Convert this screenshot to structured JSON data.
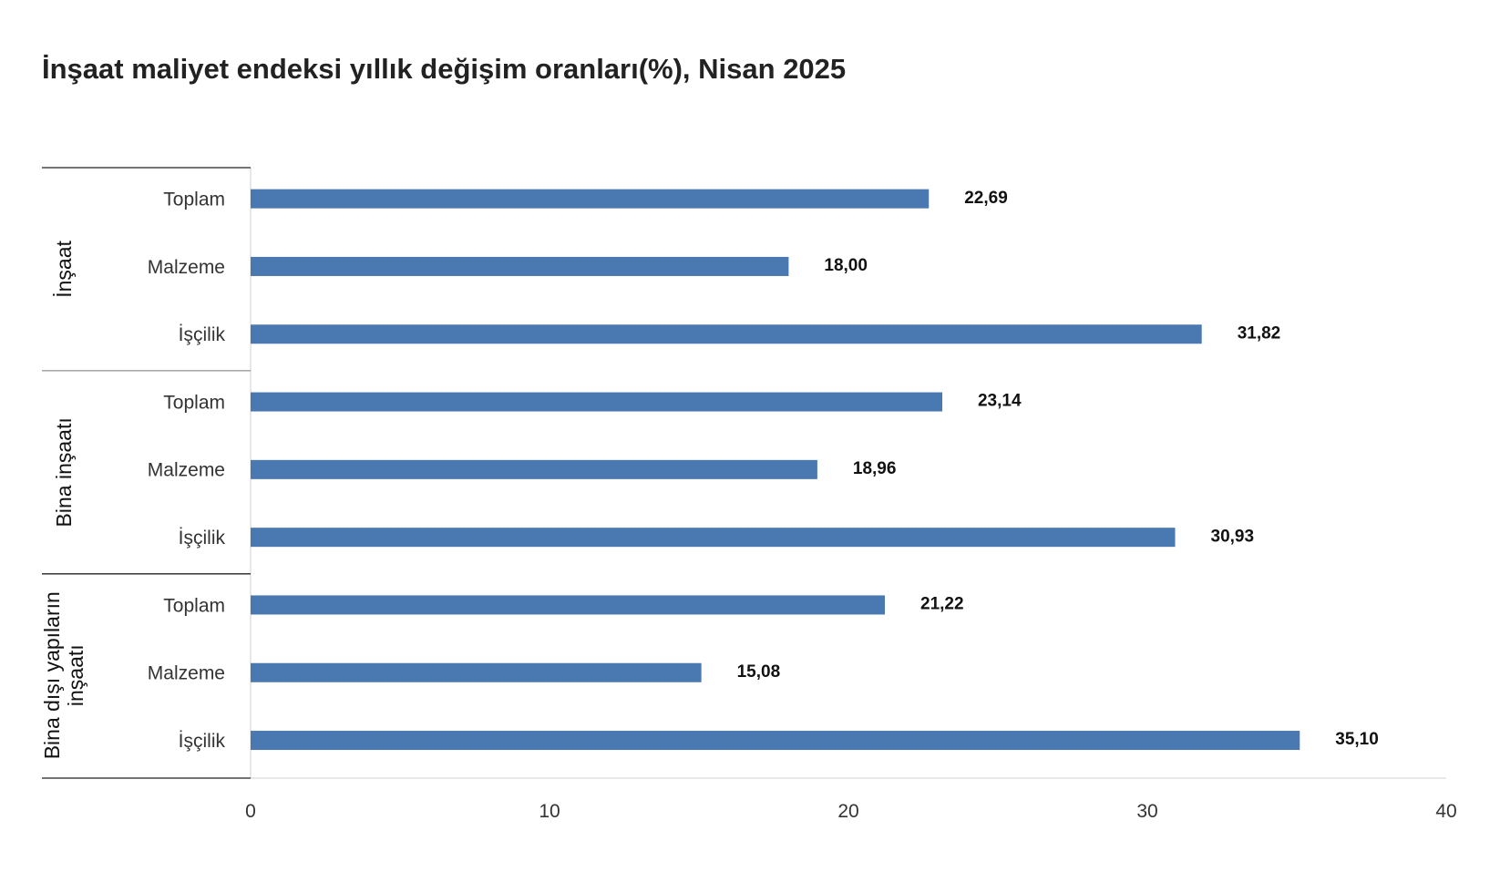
{
  "chart_data": {
    "type": "bar",
    "orientation": "horizontal",
    "title": "İnşaat maliyet endeksi yıllık değişim oranları(%), Nisan 2025",
    "xlim": [
      0,
      40
    ],
    "xticks": [
      "0",
      "10",
      "20",
      "30",
      "40"
    ],
    "bar_color": "#4a78b0",
    "grid": false,
    "groups": [
      {
        "label": "İnşaat",
        "categories": [
          "Toplam",
          "Malzeme",
          "İşçilik"
        ],
        "values": [
          22.69,
          18.0,
          31.82
        ],
        "value_labels": [
          "22,69",
          "18,00",
          "31,82"
        ]
      },
      {
        "label": "Bina inşaatı",
        "categories": [
          "Toplam",
          "Malzeme",
          "İşçilik"
        ],
        "values": [
          23.14,
          18.96,
          30.93
        ],
        "value_labels": [
          "23,14",
          "18,96",
          "30,93"
        ]
      },
      {
        "label": "Bina dışı yapıların inşaatı",
        "label_lines": [
          "Bina dışı yapıların",
          "inşaatı"
        ],
        "categories": [
          "Toplam",
          "Malzeme",
          "İşçilik"
        ],
        "values": [
          21.22,
          15.08,
          35.1
        ],
        "value_labels": [
          "21,22",
          "15,08",
          "35,10"
        ]
      }
    ]
  }
}
